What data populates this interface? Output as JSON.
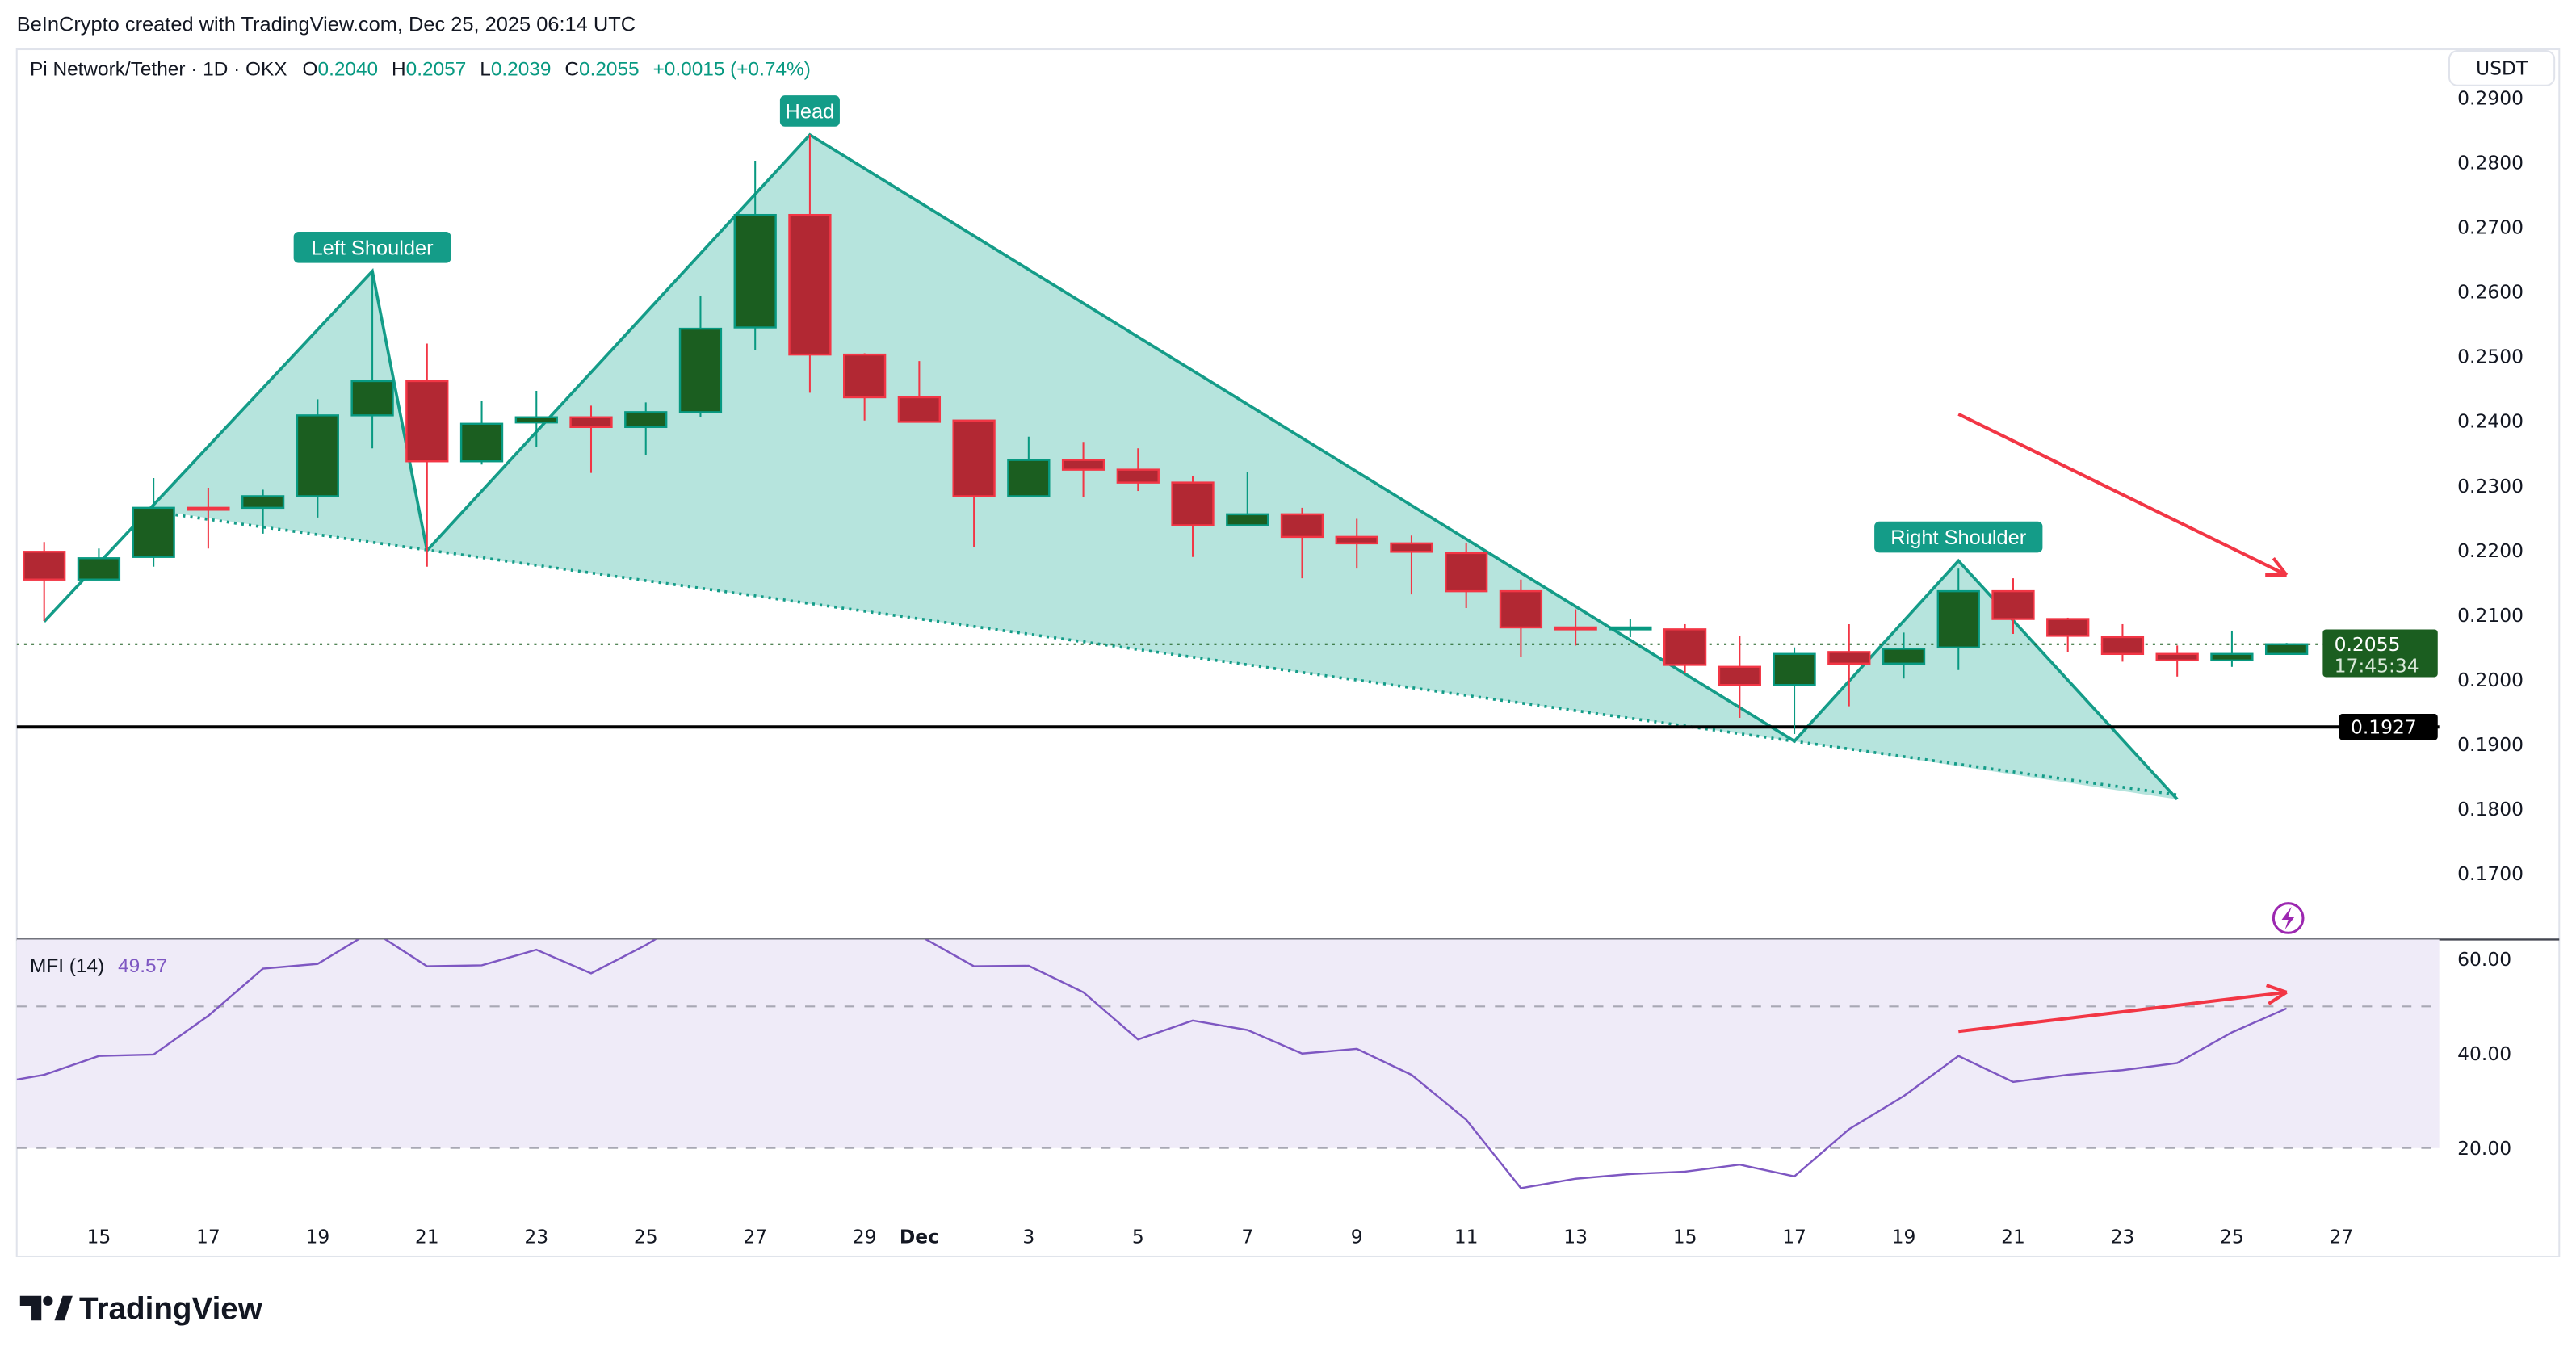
{
  "header": {
    "credit": "BeInCrypto created with TradingView.com, Dec 25, 2025 06:14 UTC"
  },
  "legend": {
    "symbol": "Pi Network/Tether · 1D · OKX",
    "o_label": "O",
    "o": "0.2040",
    "h_label": "H",
    "h": "0.2057",
    "l_label": "L",
    "l": "0.2039",
    "c_label": "C",
    "c": "0.2055",
    "change": "+0.0015 (+0.74%)"
  },
  "currency_button": "USDT",
  "price_tags": {
    "last_price": "0.2055",
    "countdown": "17:45:34",
    "support_level": "0.1927"
  },
  "mfi": {
    "label": "MFI (14)",
    "value": "49.57"
  },
  "brand": {
    "logo_text": "TradingView"
  },
  "colors": {
    "up_body": "#1b5e20",
    "up_border": "#089981",
    "down_body": "#b22833",
    "down_border": "#f23645",
    "pattern_fill": "#b2e3db",
    "pattern_stroke": "#149c88",
    "mfi_line": "#7e57c2",
    "mfi_band": "#efebf8",
    "arrow": "#f23645",
    "support": "#000000",
    "last_price": "#1b5e20"
  },
  "chart_data": [
    {
      "type": "candlestick",
      "ylim": [
        0.165,
        0.291
      ],
      "y_ticks": [
        "0.2900",
        "0.2800",
        "0.2700",
        "0.2600",
        "0.2500",
        "0.2400",
        "0.2300",
        "0.2200",
        "0.2100",
        "0.2000",
        "0.1900",
        "0.1800",
        "0.1700"
      ],
      "x_ticks": [
        "15",
        "17",
        "19",
        "21",
        "23",
        "25",
        "27",
        "29",
        "Dec",
        "3",
        "5",
        "7",
        "9",
        "11",
        "13",
        "15",
        "17",
        "19",
        "21",
        "23",
        "25",
        "27"
      ],
      "dates": [
        "2025-11-14",
        "2025-11-15",
        "2025-11-16",
        "2025-11-17",
        "2025-11-18",
        "2025-11-19",
        "2025-11-20",
        "2025-11-21",
        "2025-11-22",
        "2025-11-23",
        "2025-11-24",
        "2025-11-25",
        "2025-11-26",
        "2025-11-27",
        "2025-11-28",
        "2025-11-29",
        "2025-11-30",
        "2025-12-01",
        "2025-12-02",
        "2025-12-03",
        "2025-12-04",
        "2025-12-05",
        "2025-12-06",
        "2025-12-07",
        "2025-12-08",
        "2025-12-09",
        "2025-12-10",
        "2025-12-11",
        "2025-12-12",
        "2025-12-13",
        "2025-12-14",
        "2025-12-15",
        "2025-12-16",
        "2025-12-17",
        "2025-12-18",
        "2025-12-19",
        "2025-12-20",
        "2025-12-21",
        "2025-12-22",
        "2025-12-23",
        "2025-12-24",
        "2025-12-25"
      ],
      "ohlc": [
        [
          0.2198,
          0.2213,
          0.2091,
          0.2155
        ],
        [
          0.2155,
          0.2203,
          0.2155,
          0.2188
        ],
        [
          0.219,
          0.2312,
          0.2175,
          0.2266
        ],
        [
          0.2266,
          0.2297,
          0.2203,
          0.2265
        ],
        [
          0.2266,
          0.2294,
          0.2226,
          0.2284
        ],
        [
          0.2284,
          0.2434,
          0.2251,
          0.2409
        ],
        [
          0.2409,
          0.2632,
          0.2358,
          0.2462
        ],
        [
          0.2462,
          0.252,
          0.2175,
          0.2338
        ],
        [
          0.2338,
          0.2432,
          0.2333,
          0.2396
        ],
        [
          0.2398,
          0.2447,
          0.236,
          0.2406
        ],
        [
          0.2406,
          0.2424,
          0.232,
          0.2391
        ],
        [
          0.2391,
          0.2429,
          0.2348,
          0.2414
        ],
        [
          0.2414,
          0.2594,
          0.2406,
          0.2543
        ],
        [
          0.2545,
          0.2803,
          0.251,
          0.2719
        ],
        [
          0.2719,
          0.2843,
          0.2444,
          0.2503
        ],
        [
          0.2503,
          0.2505,
          0.2401,
          0.2437
        ],
        [
          0.2437,
          0.2493,
          0.2399,
          0.2399
        ],
        [
          0.2401,
          0.2401,
          0.2205,
          0.2284
        ],
        [
          0.2284,
          0.2376,
          0.2284,
          0.234
        ],
        [
          0.234,
          0.2368,
          0.2282,
          0.2325
        ],
        [
          0.2325,
          0.2358,
          0.2292,
          0.2305
        ],
        [
          0.2305,
          0.2315,
          0.219,
          0.2239
        ],
        [
          0.2239,
          0.2322,
          0.2239,
          0.2256
        ],
        [
          0.2256,
          0.2266,
          0.2157,
          0.2221
        ],
        [
          0.2221,
          0.2249,
          0.2172,
          0.2211
        ],
        [
          0.2211,
          0.2223,
          0.2132,
          0.2198
        ],
        [
          0.2196,
          0.2211,
          0.2111,
          0.2137
        ],
        [
          0.2137,
          0.2155,
          0.2035,
          0.2081
        ],
        [
          0.2081,
          0.2109,
          0.2053,
          0.2078
        ],
        [
          0.2078,
          0.2094,
          0.2066,
          0.2081
        ],
        [
          0.2078,
          0.2086,
          0.201,
          0.2023
        ],
        [
          0.202,
          0.2068,
          0.1941,
          0.1992
        ],
        [
          0.1992,
          0.205,
          0.1916,
          0.204
        ],
        [
          0.2043,
          0.2086,
          0.1959,
          0.2025
        ],
        [
          0.2025,
          0.2073,
          0.2002,
          0.2048
        ],
        [
          0.205,
          0.2172,
          0.2015,
          0.2137
        ],
        [
          0.2137,
          0.2157,
          0.2071,
          0.2094
        ],
        [
          0.2094,
          0.2096,
          0.2043,
          0.2068
        ],
        [
          0.2066,
          0.2086,
          0.2028,
          0.204
        ],
        [
          0.204,
          0.2053,
          0.2005,
          0.203
        ],
        [
          0.203,
          0.2076,
          0.202,
          0.204
        ],
        [
          0.204,
          0.2057,
          0.2039,
          0.2055
        ]
      ],
      "last_price": 0.2055,
      "support_line": 0.1927,
      "pattern": {
        "labels": [
          "Left Shoulder",
          "Head",
          "Right Shoulder"
        ],
        "zigzag": [
          [
            "2025-11-14",
            0.209
          ],
          [
            "2025-11-20",
            0.2632
          ],
          [
            "2025-11-21",
            0.22
          ],
          [
            "2025-11-28",
            0.2843
          ],
          [
            "2025-12-16",
            0.1905
          ],
          [
            "2025-12-19",
            0.2184
          ],
          [
            "2025-12-23",
            0.1815
          ]
        ],
        "neckline": [
          [
            "2025-11-16",
            0.226
          ],
          [
            "2025-12-23",
            0.1822
          ]
        ]
      },
      "arrow": [
        [
          "2025-12-19",
          0.2411
        ],
        [
          "2025-12-25",
          0.2162
        ]
      ]
    },
    {
      "type": "line",
      "name": "MFI (14)",
      "ylim": [
        4,
        64.2
      ],
      "y_ticks": [
        "60.00",
        "40.00",
        "20.00"
      ],
      "levels": [
        50,
        20
      ],
      "band": [
        20,
        80
      ],
      "values": [
        35.5,
        39.5,
        39.8,
        48,
        58,
        59,
        66,
        58.5,
        58.7,
        62,
        57,
        63,
        70,
        72,
        72,
        70,
        65,
        58.5,
        58.6,
        53,
        43,
        47,
        45,
        40,
        41,
        35.5,
        26,
        11.5,
        13.5,
        14.5,
        15,
        16.5,
        14,
        24,
        31,
        39.5,
        34,
        35.5,
        36.5,
        38,
        44.5,
        49.57
      ],
      "arrow": [
        [
          "2025-12-19",
          44.7
        ],
        [
          "2025-12-25",
          53
        ]
      ]
    }
  ]
}
